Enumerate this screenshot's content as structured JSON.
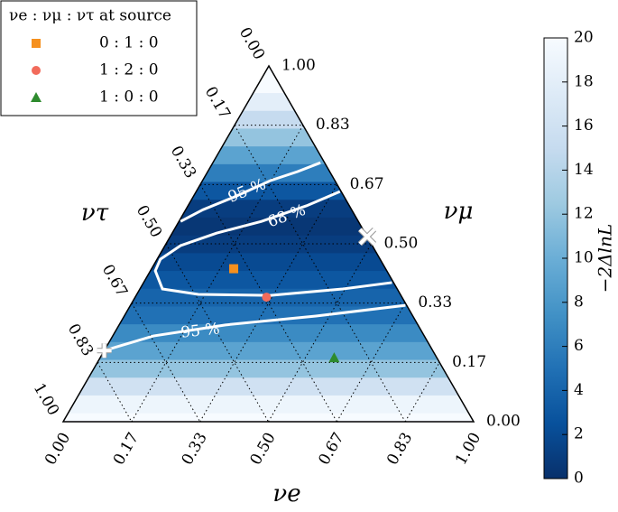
{
  "chart_data": {
    "type": "ternary",
    "legend_title": "νe : νμ : ντ at source",
    "axis_labels": {
      "e": "νe",
      "mu": "νμ",
      "tau": "ντ"
    },
    "ternary_ticks": [
      {
        "value": 0,
        "label": "0.00"
      },
      {
        "value": 0.1667,
        "label": "0.17"
      },
      {
        "value": 0.3333,
        "label": "0.33"
      },
      {
        "value": 0.5,
        "label": "0.50"
      },
      {
        "value": 0.6667,
        "label": "0.67"
      },
      {
        "value": 0.8333,
        "label": "0.83"
      },
      {
        "value": 1,
        "label": "1.00"
      }
    ],
    "grid": true,
    "series": [
      {
        "name": "0 : 1 : 0",
        "marker": "square",
        "color": "#f5901e",
        "e": [
          0.2
        ],
        "mu": [
          0.43
        ],
        "tau": [
          0.37
        ]
      },
      {
        "name": "1 : 2 : 0",
        "marker": "circle",
        "color": "#f26b5b",
        "e": [
          0.32
        ],
        "mu": [
          0.35
        ],
        "tau": [
          0.33
        ]
      },
      {
        "name": "1 : 0 : 0",
        "marker": "triangle",
        "color": "#2e8b2e",
        "e": [
          0.57
        ],
        "mu": [
          0.18
        ],
        "tau": [
          0.25
        ]
      }
    ],
    "extra_points": [
      {
        "marker": "x",
        "e": [
          0.48
        ],
        "mu": [
          0.52
        ],
        "tau": [
          0
        ]
      },
      {
        "marker": "plus",
        "e": [
          0
        ],
        "mu": [
          0.2
        ],
        "tau": [
          0.8
        ]
      }
    ],
    "contours": [
      {
        "label": "95 %",
        "e": [
          0.262,
          0.219,
          0.166,
          0.101,
          0.042,
          0.004
        ],
        "mu": [
          0.728,
          0.703,
          0.678,
          0.632,
          0.596,
          0.563
        ]
      },
      {
        "label": "68 %",
        "e": [
          0.35,
          0.289,
          0.201,
          0.108,
          0.038,
          0.008,
          0.012,
          0.055,
          0.15,
          0.327,
          0.494,
          0.605
        ],
        "mu": [
          0.647,
          0.607,
          0.563,
          0.53,
          0.495,
          0.457,
          0.424,
          0.373,
          0.358,
          0.355,
          0.373,
          0.391
        ]
      },
      {
        "label": "95 %",
        "e": [
          0,
          0.099,
          0.259,
          0.467,
          0.67
        ],
        "mu": [
          0.2,
          0.241,
          0.272,
          0.297,
          0.327
        ]
      }
    ],
    "heatmap": {
      "mu": [
        0,
        0.05,
        0.1,
        0.15,
        0.2,
        0.25,
        0.3,
        0.35,
        0.4,
        0.45,
        0.5,
        0.55,
        0.6,
        0.65,
        0.7,
        0.75,
        0.8,
        0.85,
        0.9,
        0.95,
        1
      ],
      "values": [
        20,
        19,
        16,
        12,
        9,
        7,
        5,
        4,
        3,
        2,
        1,
        0.5,
        1,
        3,
        6,
        9,
        12,
        15,
        18,
        20,
        20
      ]
    },
    "colorbar_label": "−2ΔlnL",
    "clim": [
      0,
      20
    ],
    "cticks": [
      0,
      2,
      4,
      6,
      8,
      10,
      12,
      14,
      16,
      18,
      20
    ]
  }
}
